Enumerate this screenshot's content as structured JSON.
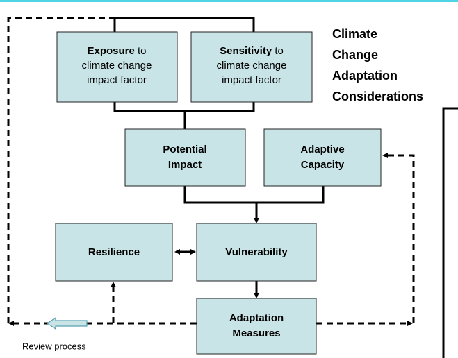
{
  "title": [
    "Climate",
    "Change",
    "Adaptation",
    "Considerations"
  ],
  "nodes": [
    {
      "head": "Exposure",
      "tail": "to",
      "lines": [
        "climate change",
        "impact factor"
      ]
    },
    {
      "head": "Sensitivity",
      "tail": "to",
      "lines": [
        "climate change",
        "impact factor"
      ]
    },
    {
      "lines": [
        "Potential",
        "Impact"
      ]
    },
    {
      "lines": [
        "Adaptive",
        "Capacity"
      ]
    },
    {
      "lines": [
        "Resilience"
      ]
    },
    {
      "lines": [
        "Vulnerability"
      ]
    },
    {
      "lines": [
        "Adaptation",
        "Measures"
      ]
    }
  ],
  "caption": "Review process"
}
